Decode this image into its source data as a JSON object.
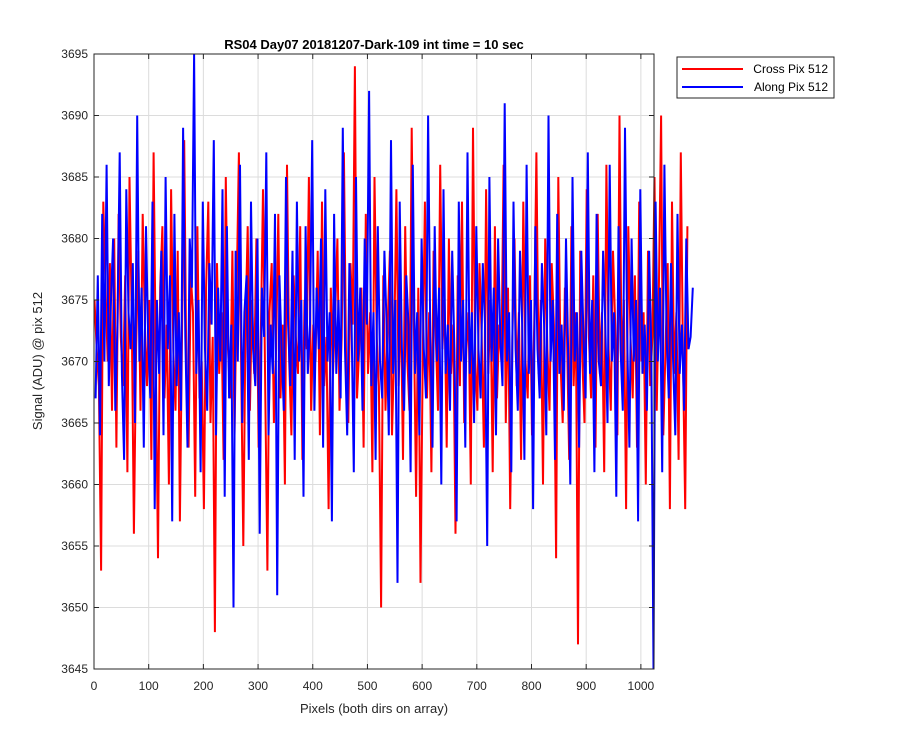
{
  "chart_data": {
    "type": "line",
    "title": "RS04 Day07 20181207-Dark-109 int time = 10 sec",
    "xlabel": "Pixels (both dirs on array)",
    "ylabel": "Signal (ADU) @ pix 512",
    "xlim": [
      0,
      1024
    ],
    "ylim": [
      3645,
      3695
    ],
    "xticks": [
      0,
      100,
      200,
      300,
      400,
      500,
      600,
      700,
      800,
      900,
      1000
    ],
    "yticks": [
      3645,
      3650,
      3655,
      3660,
      3665,
      3670,
      3675,
      3680,
      3685,
      3690,
      3695
    ],
    "grid": true,
    "legend_position": "outside top-right",
    "series": [
      {
        "name": "Cross Pix 512",
        "color": "#ff0000",
        "x_start": 1,
        "x_step": 4,
        "values": [
          3675,
          3671,
          3668,
          3653,
          3683,
          3676,
          3670,
          3678,
          3666,
          3680,
          3663,
          3682,
          3672,
          3668,
          3677,
          3661,
          3685,
          3674,
          3656,
          3671,
          3679,
          3666,
          3682,
          3673,
          3668,
          3675,
          3662,
          3687,
          3670,
          3654,
          3676,
          3681,
          3667,
          3673,
          3660,
          3684,
          3671,
          3666,
          3679,
          3657,
          3672,
          3688,
          3669,
          3663,
          3677,
          3674,
          3659,
          3681,
          3667,
          3670,
          3658,
          3676,
          3683,
          3665,
          3672,
          3648,
          3678,
          3669,
          3674,
          3662,
          3685,
          3671,
          3667,
          3679,
          3664,
          3676,
          3687,
          3670,
          3655,
          3673,
          3681,
          3666,
          3675,
          3669,
          3680,
          3663,
          3672,
          3684,
          3668,
          3653,
          3674,
          3678,
          3665,
          3671,
          3682,
          3667,
          3673,
          3660,
          3686,
          3670,
          3664,
          3677,
          3672,
          3669,
          3681,
          3662,
          3675,
          3671,
          3685,
          3666,
          3673,
          3670,
          3679,
          3664,
          3683,
          3668,
          3672,
          3658,
          3676,
          3669,
          3674,
          3680,
          3666,
          3672,
          3687,
          3670,
          3665,
          3678,
          3673,
          3694,
          3667,
          3671,
          3676,
          3663,
          3682,
          3669,
          3674,
          3661,
          3685,
          3672,
          3668,
          3650,
          3677,
          3666,
          3673,
          3679,
          3664,
          3671,
          3684,
          3668,
          3675,
          3662,
          3681,
          3670,
          3666,
          3689,
          3673,
          3659,
          3676,
          3652,
          3670,
          3683,
          3667,
          3674,
          3661,
          3679,
          3672,
          3666,
          3686,
          3671,
          3675,
          3663,
          3680,
          3669,
          3673,
          3656,
          3677,
          3668,
          3683,
          3665,
          3671,
          3674,
          3660,
          3689,
          3670,
          3666,
          3678,
          3672,
          3663,
          3684,
          3669,
          3675,
          3661,
          3681,
          3667,
          3673,
          3670,
          3686,
          3665,
          3676,
          3658,
          3672,
          3680,
          3668,
          3674,
          3662,
          3683,
          3670,
          3667,
          3677,
          3664,
          3673,
          3687,
          3669,
          3675,
          3660,
          3680,
          3671,
          3666,
          3678,
          3673,
          3654,
          3685,
          3670,
          3665,
          3676,
          3672,
          3662,
          3681,
          3668,
          3674,
          3647,
          3679,
          3670,
          3665,
          3684,
          3672,
          3667,
          3677,
          3663,
          3682,
          3669,
          3674,
          3661,
          3686,
          3671,
          3666,
          3679,
          3673,
          3664,
          3690,
          3669,
          3675,
          3658,
          3681,
          3672,
          3667,
          3677,
          3663,
          3683,
          3670,
          3674,
          3660,
          3679,
          3668,
          3672,
          3685,
          3666,
          3676,
          3690,
          3664,
          3671,
          3678,
          3658,
          3683,
          3669,
          3674,
          3662,
          3687,
          3670,
          3658,
          3681
        ]
      },
      {
        "name": "Along Pix 512",
        "color": "#0000ff",
        "x_start": 3,
        "x_step": 4,
        "values": [
          3667,
          3677,
          3664,
          3682,
          3670,
          3686,
          3668,
          3675,
          3680,
          3666,
          3673,
          3687,
          3669,
          3662,
          3684,
          3674,
          3671,
          3678,
          3665,
          3690,
          3670,
          3676,
          3663,
          3681,
          3672,
          3667,
          3683,
          3658,
          3675,
          3669,
          3679,
          3664,
          3685,
          3671,
          3677,
          3657,
          3682,
          3668,
          3674,
          3666,
          3689,
          3672,
          3663,
          3680,
          3676,
          3695,
          3669,
          3675,
          3661,
          3683,
          3671,
          3666,
          3678,
          3673,
          3688,
          3664,
          3676,
          3670,
          3684,
          3659,
          3681,
          3667,
          3673,
          3650,
          3679,
          3670,
          3686,
          3665,
          3674,
          3677,
          3662,
          3683,
          3671,
          3668,
          3680,
          3656,
          3676,
          3672,
          3687,
          3664,
          3673,
          3669,
          3682,
          3651,
          3677,
          3671,
          3666,
          3685,
          3673,
          3668,
          3679,
          3662,
          3683,
          3670,
          3675,
          3659,
          3681,
          3669,
          3673,
          3688,
          3666,
          3676,
          3671,
          3680,
          3663,
          3684,
          3670,
          3674,
          3657,
          3682,
          3669,
          3675,
          3667,
          3689,
          3671,
          3664,
          3678,
          3673,
          3661,
          3685,
          3670,
          3676,
          3666,
          3680,
          3673,
          3692,
          3668,
          3674,
          3662,
          3681,
          3670,
          3667,
          3679,
          3673,
          3664,
          3688,
          3669,
          3675,
          3652,
          3683,
          3671,
          3666,
          3677,
          3673,
          3661,
          3686,
          3669,
          3674,
          3664,
          3680,
          3671,
          3667,
          3690,
          3672,
          3663,
          3681,
          3670,
          3676,
          3660,
          3684,
          3669,
          3673,
          3666,
          3679,
          3671,
          3657,
          3683,
          3670,
          3675,
          3663,
          3687,
          3669,
          3674,
          3665,
          3681,
          3671,
          3667,
          3678,
          3673,
          3655,
          3685,
          3670,
          3676,
          3664,
          3680,
          3672,
          3668,
          3691,
          3670,
          3674,
          3661,
          3683,
          3671,
          3666,
          3679,
          3673,
          3662,
          3686,
          3669,
          3675,
          3658,
          3681,
          3671,
          3667,
          3678,
          3673,
          3664,
          3690,
          3670,
          3675,
          3662,
          3682,
          3669,
          3673,
          3666,
          3680,
          3671,
          3660,
          3685,
          3670,
          3674,
          3663,
          3679,
          3672,
          3667,
          3687,
          3669,
          3675,
          3661,
          3682,
          3670,
          3668,
          3679,
          3673,
          3665,
          3686,
          3670,
          3674,
          3659,
          3681,
          3671,
          3666,
          3689,
          3672,
          3663,
          3680,
          3670,
          3675,
          3657,
          3684,
          3669,
          3673,
          3666,
          3679,
          3671,
          3645,
          3683,
          3670,
          3676,
          3661,
          3686,
          3672,
          3667,
          3678,
          3670,
          3664,
          3682,
          3669,
          3673,
          3666,
          3680,
          3671,
          3672,
          3676
        ]
      }
    ]
  }
}
